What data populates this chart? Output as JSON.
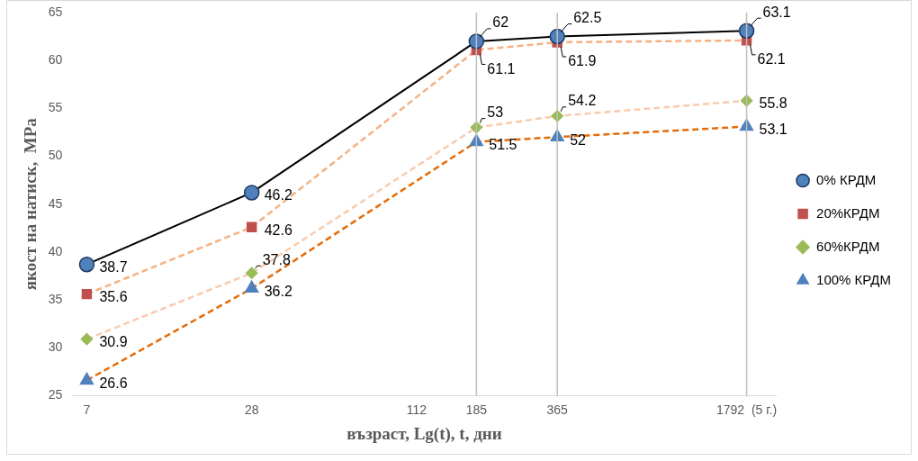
{
  "chart_data": {
    "type": "line",
    "xlabel": "възраст, Lg(t), t, дни",
    "ylabel": "якост на натиск,  МРа",
    "log": "x",
    "x": [
      7,
      28,
      185,
      365,
      1792
    ],
    "xlim": [
      6.2,
      2300
    ],
    "xticks": [
      7,
      28,
      112,
      185,
      365,
      {
        "value": 1792,
        "label": "1792  (5 г.)"
      }
    ],
    "ylim": [
      25,
      65
    ],
    "yticks": [
      25,
      30,
      35,
      40,
      45,
      50,
      55,
      60,
      65
    ],
    "grid": false,
    "legend": "right",
    "data_labels": true,
    "ref_lines": [
      {
        "axis": "x",
        "value": 185,
        "color": "#bfbfbf"
      },
      {
        "axis": "x",
        "value": 365,
        "color": "#bfbfbf"
      },
      {
        "axis": "x",
        "value": 1792,
        "color": "#bfbfbf"
      }
    ],
    "series": [
      {
        "name": "0% КРДМ",
        "color": "#000000",
        "colors": [
          "#4f81bd",
          "#4f81bd",
          "#4f81bd",
          "#4f81bd",
          "#4f81bd"
        ],
        "marker": "circle",
        "line_style": "solid",
        "values": [
          38.7,
          46.2,
          62,
          62.5,
          63.1
        ]
      },
      {
        "name": "20%КРДМ",
        "color": "#f4b183",
        "colors": [
          "#c0504d",
          "#c0504d",
          "#c0504d",
          "#c0504d",
          "#c0504d"
        ],
        "marker": "square",
        "line_style": "dashed",
        "values": [
          35.6,
          42.6,
          61.1,
          61.9,
          62.1
        ]
      },
      {
        "name": "60%КРДМ",
        "color": "#f8cbad",
        "colors": [
          "#9bbb59",
          "#9bbb59",
          "#9bbb59",
          "#9bbb59",
          "#9bbb59"
        ],
        "marker": "diamond",
        "line_style": "dashed",
        "values": [
          30.9,
          37.8,
          53,
          54.2,
          55.8
        ]
      },
      {
        "name": "100% КРДМ",
        "color": "#e46c0a",
        "colors": [
          "#4f81bd",
          "#4f81bd",
          "#4f81bd",
          "#4f81bd",
          "#4f81bd"
        ],
        "marker": "triangle",
        "line_style": "dashed",
        "values": [
          26.6,
          36.2,
          51.5,
          52,
          53.1
        ]
      }
    ]
  }
}
